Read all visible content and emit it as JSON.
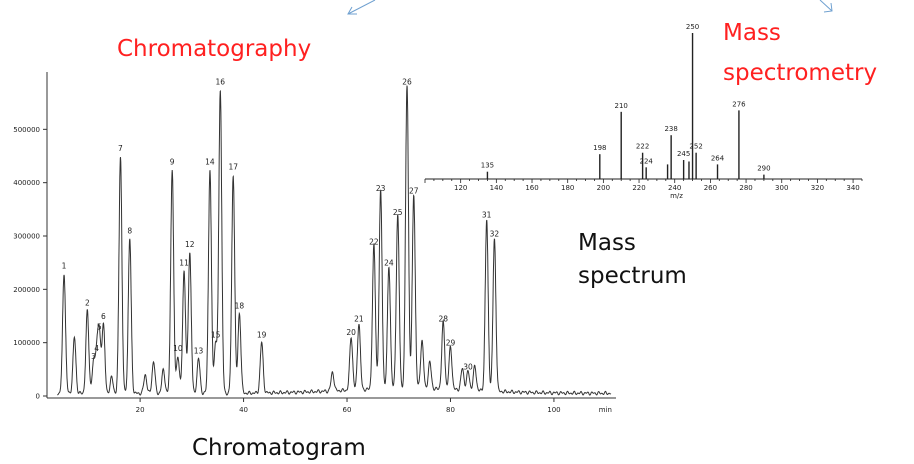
{
  "labels": {
    "chromatography": "Chromatography",
    "mass_spectrometry_line1": "Mass",
    "mass_spectrometry_line2": "spectrometry",
    "mass_spectrum_line1": "Mass",
    "mass_spectrum_line2": "spectrum",
    "chromatogram": "Chromatogram"
  },
  "colors": {
    "accent_red": "#ff2020",
    "arrow_blue": "#6fa0d0",
    "trace": "#333333"
  },
  "chart_data": [
    {
      "type": "line",
      "xlabel": "min",
      "ylabel": "",
      "xlim": [
        2,
        112
      ],
      "ylim": [
        0,
        600000
      ],
      "xticks": [
        20,
        40,
        60,
        80,
        100
      ],
      "yticks": [
        0,
        100000,
        200000,
        300000,
        400000,
        500000
      ],
      "ytick_labels": [
        "0",
        "100000",
        "200000",
        "300000",
        "400000",
        "500000"
      ],
      "baseline": 5000,
      "grid": false,
      "peaks": [
        {
          "label": "1",
          "x": 5.3,
          "y": 225000
        },
        {
          "label": "2",
          "x": 9.8,
          "y": 155000
        },
        {
          "label": "3",
          "x": 11.0,
          "y": 55000
        },
        {
          "label": "4",
          "x": 11.6,
          "y": 70000
        },
        {
          "label": "5",
          "x": 12.1,
          "y": 110000
        },
        {
          "label": "6",
          "x": 12.9,
          "y": 130000
        },
        {
          "label": "7",
          "x": 16.2,
          "y": 445000
        },
        {
          "label": "8",
          "x": 18.0,
          "y": 290000
        },
        {
          "label": "9",
          "x": 26.2,
          "y": 420000
        },
        {
          "label": "10",
          "x": 27.3,
          "y": 70000
        },
        {
          "label": "11",
          "x": 28.5,
          "y": 230000
        },
        {
          "label": "12",
          "x": 29.6,
          "y": 265000
        },
        {
          "label": "13",
          "x": 31.3,
          "y": 65000
        },
        {
          "label": "14",
          "x": 33.5,
          "y": 420000
        },
        {
          "label": "15",
          "x": 34.6,
          "y": 95000
        },
        {
          "label": "16",
          "x": 35.5,
          "y": 570000
        },
        {
          "label": "17",
          "x": 38.0,
          "y": 410000
        },
        {
          "label": "18",
          "x": 39.2,
          "y": 150000
        },
        {
          "label": "19",
          "x": 43.5,
          "y": 95000
        },
        {
          "label": "20",
          "x": 60.8,
          "y": 100000
        },
        {
          "label": "21",
          "x": 62.3,
          "y": 125000
        },
        {
          "label": "22",
          "x": 65.2,
          "y": 270000
        },
        {
          "label": "23",
          "x": 66.5,
          "y": 370000
        },
        {
          "label": "24",
          "x": 68.1,
          "y": 230000
        },
        {
          "label": "25",
          "x": 69.8,
          "y": 325000
        },
        {
          "label": "26",
          "x": 71.6,
          "y": 570000
        },
        {
          "label": "27",
          "x": 72.9,
          "y": 365000
        },
        {
          "label": "28",
          "x": 78.6,
          "y": 125000
        },
        {
          "label": "29",
          "x": 80.0,
          "y": 80000
        },
        {
          "label": "30",
          "x": 83.4,
          "y": 35000
        },
        {
          "label": "31",
          "x": 87.0,
          "y": 320000
        },
        {
          "label": "32",
          "x": 88.5,
          "y": 285000
        }
      ],
      "unlabeled_peaks": [
        {
          "x": 7.3,
          "y": 105000
        },
        {
          "x": 14.5,
          "y": 30000
        },
        {
          "x": 21.0,
          "y": 35000
        },
        {
          "x": 22.6,
          "y": 60000
        },
        {
          "x": 24.5,
          "y": 45000
        },
        {
          "x": 57.2,
          "y": 35000
        },
        {
          "x": 74.5,
          "y": 90000
        },
        {
          "x": 76.0,
          "y": 50000
        },
        {
          "x": 82.3,
          "y": 40000
        },
        {
          "x": 84.7,
          "y": 45000
        }
      ]
    },
    {
      "type": "bar",
      "xlabel": "m/z",
      "xlim": [
        100,
        345
      ],
      "ylim": [
        0,
        100
      ],
      "xticks": [
        120,
        140,
        160,
        180,
        200,
        220,
        240,
        260,
        280,
        300,
        320,
        340
      ],
      "grid": false,
      "bars": [
        {
          "x": 135,
          "y": 5,
          "label": "135"
        },
        {
          "x": 198,
          "y": 17,
          "label": "198"
        },
        {
          "x": 210,
          "y": 46,
          "label": "210"
        },
        {
          "x": 222,
          "y": 18,
          "label": "222"
        },
        {
          "x": 224,
          "y": 8,
          "label": "224"
        },
        {
          "x": 238,
          "y": 30,
          "label": "238"
        },
        {
          "x": 236,
          "y": 10,
          "label": ""
        },
        {
          "x": 245,
          "y": 13,
          "label": "245"
        },
        {
          "x": 248,
          "y": 12,
          "label": ""
        },
        {
          "x": 250,
          "y": 100,
          "label": "250"
        },
        {
          "x": 252,
          "y": 18,
          "label": "252"
        },
        {
          "x": 264,
          "y": 10,
          "label": "264"
        },
        {
          "x": 276,
          "y": 47,
          "label": "276"
        },
        {
          "x": 290,
          "y": 3,
          "label": "290"
        }
      ]
    }
  ]
}
